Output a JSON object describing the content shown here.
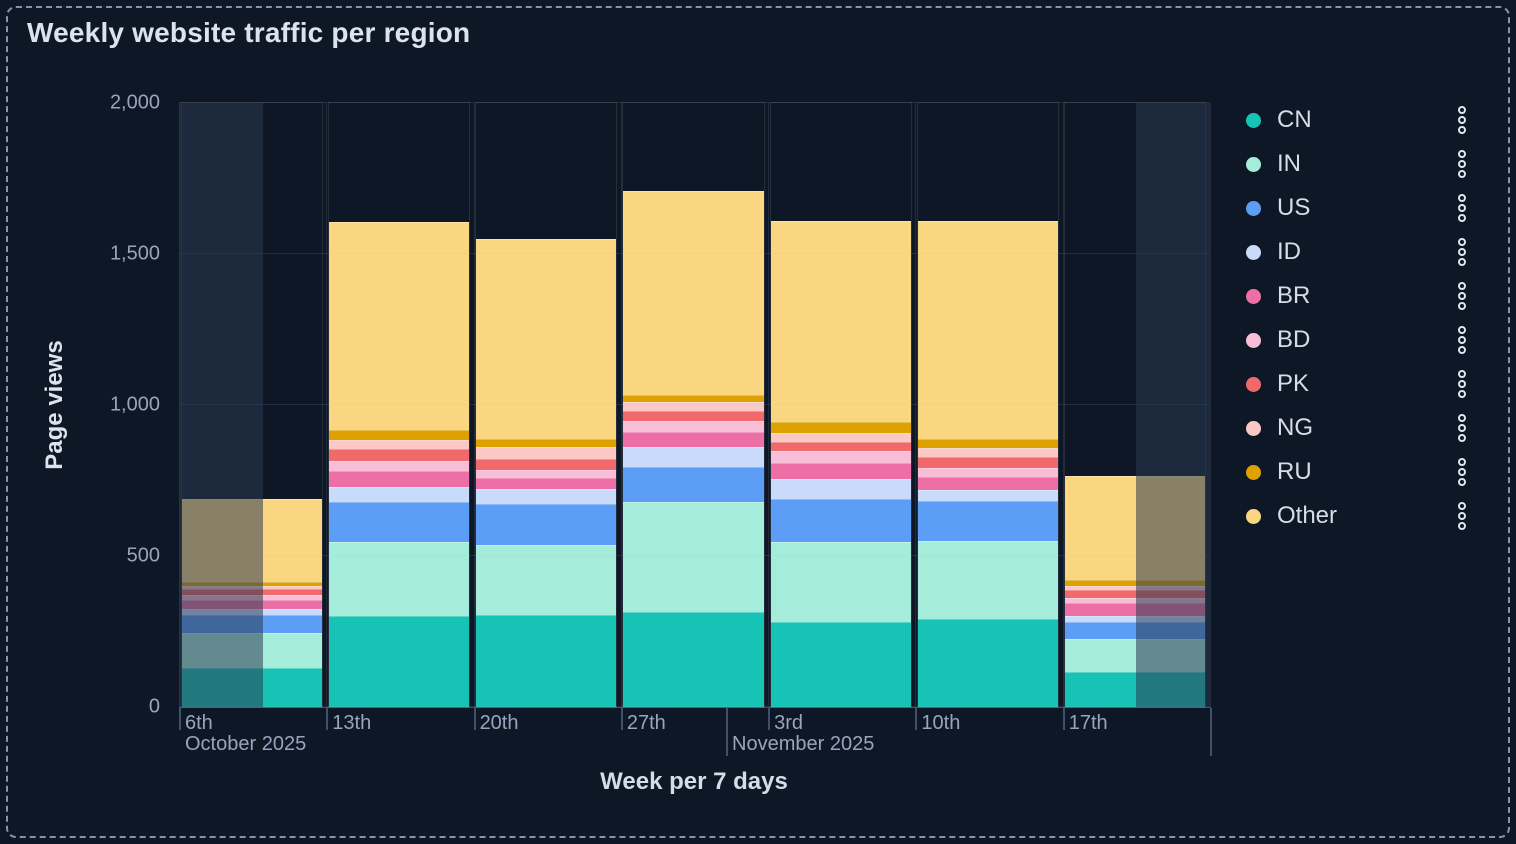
{
  "panel": {
    "title": "Weekly website traffic per region"
  },
  "y_axis": {
    "title": "Page views",
    "ticks": [
      {
        "label": "2,000",
        "value": 2000
      },
      {
        "label": "1,500",
        "value": 1500
      },
      {
        "label": "1,000",
        "value": 1000
      },
      {
        "label": "500",
        "value": 500
      },
      {
        "label": "0",
        "value": 0
      }
    ]
  },
  "x_axis": {
    "title": "Week per 7 days",
    "week_labels": [
      "6th",
      "13th",
      "20th",
      "27th",
      "3rd",
      "10th",
      "17th"
    ],
    "month_labels": [
      {
        "label": "October 2025",
        "anchor_week": 0,
        "anchor_day": 0
      },
      {
        "label": "November 2025",
        "anchor_week": 3,
        "anchor_day": 5
      }
    ],
    "month_ticks": [
      {
        "week": 3,
        "day": 5
      }
    ]
  },
  "legend": {
    "position": "right",
    "menu_icon": "boxes-vertical-icon",
    "items": [
      {
        "label": "CN",
        "color": "#17C3B4"
      },
      {
        "label": "IN",
        "color": "#A6ECDA"
      },
      {
        "label": "US",
        "color": "#5C9DF5"
      },
      {
        "label": "ID",
        "color": "#C8DBFA"
      },
      {
        "label": "BR",
        "color": "#EE6FA5"
      },
      {
        "label": "BD",
        "color": "#F8BDD7"
      },
      {
        "label": "PK",
        "color": "#F2696C"
      },
      {
        "label": "NG",
        "color": "#FBC8C3"
      },
      {
        "label": "RU",
        "color": "#DEA200"
      },
      {
        "label": "Other",
        "color": "#FBD680"
      }
    ]
  },
  "chart_data": {
    "type": "bar",
    "stacked": true,
    "title": "Weekly website traffic per region",
    "xlabel": "Week per 7 days",
    "ylabel": "Page views",
    "ylim": [
      0,
      2000
    ],
    "y_gridlines": [
      0,
      500,
      1000,
      1500,
      2000
    ],
    "grid": true,
    "legend_position": "right",
    "categories": [
      "Oct 6",
      "Oct 13",
      "Oct 20",
      "Oct 27",
      "Nov 3",
      "Nov 10",
      "Nov 17"
    ],
    "series": [
      {
        "name": "CN",
        "color": "#17C3B4",
        "values": [
          130,
          300,
          305,
          315,
          282,
          290,
          115
        ]
      },
      {
        "name": "IN",
        "color": "#A6ECDA",
        "values": [
          115,
          245,
          230,
          365,
          263,
          260,
          110
        ]
      },
      {
        "name": "US",
        "color": "#5C9DF5",
        "values": [
          60,
          135,
          137,
          115,
          145,
          131,
          58
        ]
      },
      {
        "name": "ID",
        "color": "#C8DBFA",
        "values": [
          18,
          50,
          50,
          65,
          64,
          36,
          18
        ]
      },
      {
        "name": "BR",
        "color": "#EE6FA5",
        "values": [
          32,
          52,
          35,
          52,
          55,
          44,
          43
        ]
      },
      {
        "name": "BD",
        "color": "#F8BDD7",
        "values": [
          17,
          33,
          28,
          35,
          38,
          31,
          18
        ]
      },
      {
        "name": "PK",
        "color": "#F2696C",
        "values": [
          18,
          40,
          37,
          33,
          29,
          36,
          25
        ]
      },
      {
        "name": "NG",
        "color": "#FBC8C3",
        "values": [
          11,
          28,
          38,
          30,
          30,
          31,
          13
        ]
      },
      {
        "name": "RU",
        "color": "#DEA200",
        "values": [
          14,
          33,
          26,
          22,
          37,
          28,
          20
        ]
      },
      {
        "name": "Other",
        "color": "#FBD680",
        "values": [
          275,
          690,
          664,
          678,
          665,
          721,
          345
        ]
      }
    ],
    "totals": [
      690,
      1606,
      1550,
      1710,
      1608,
      1608,
      765
    ],
    "partial_buckets": [
      {
        "week_index": 0,
        "from_day": 0,
        "to_day": 4
      },
      {
        "week_index": 6,
        "from_day": 3.5,
        "to_day": 7
      }
    ]
  }
}
